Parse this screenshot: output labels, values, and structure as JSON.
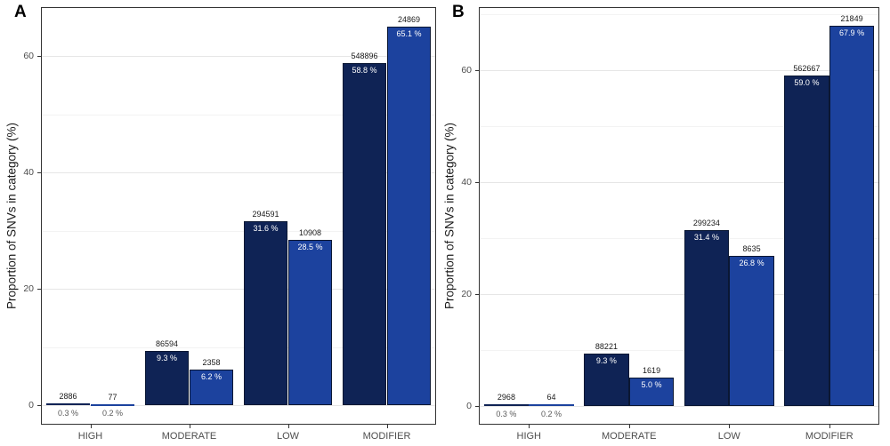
{
  "figure": {
    "background": "#ffffff",
    "panel_border_color": "#333333",
    "grid_major_color": "#e6e6e6",
    "grid_minor_color": "#f3f3f3",
    "axis_text_color": "#4d4d4d",
    "count_label_color": "#1a1a1a",
    "pct_inside_color": "#ffffff",
    "pct_outside_color": "#595959",
    "bar_border_color": "#0a1733",
    "series_colors": {
      "dark_blue": "#0f2355",
      "light_blue": "#1c429e"
    }
  },
  "chart_data": [
    {
      "type": "bar",
      "panel_label": "A",
      "title": "",
      "xlabel": "",
      "ylabel": "Proportion of SNVs in category (%)",
      "categories": [
        "HIGH",
        "MODERATE",
        "LOW",
        "MODIFIER"
      ],
      "y_ticks": [
        0,
        20,
        40,
        60
      ],
      "ylim": [
        -3.3,
        68.4
      ],
      "grid": true,
      "legend": "none",
      "series": [
        {
          "name": "dark_blue",
          "values": [
            0.3,
            9.3,
            31.6,
            58.8
          ],
          "counts": [
            "2886",
            "86594",
            "294591",
            "548896"
          ],
          "pct_labels": [
            "0.3 %",
            "9.3 %",
            "31.6 %",
            "58.8 %"
          ]
        },
        {
          "name": "light_blue",
          "values": [
            0.2,
            6.2,
            28.5,
            65.1
          ],
          "counts": [
            "77",
            "2358",
            "10908",
            "24869"
          ],
          "pct_labels": [
            "0.2 %",
            "6.2 %",
            "28.5 %",
            "65.1 %"
          ]
        }
      ]
    },
    {
      "type": "bar",
      "panel_label": "B",
      "title": "",
      "xlabel": "",
      "ylabel": "Proportion of SNVs in category (%)",
      "categories": [
        "HIGH",
        "MODERATE",
        "LOW",
        "MODIFIER"
      ],
      "y_ticks": [
        0,
        20,
        40,
        60
      ],
      "ylim": [
        -3.4,
        71.3
      ],
      "grid": true,
      "legend": "none",
      "series": [
        {
          "name": "dark_blue",
          "values": [
            0.3,
            9.3,
            31.4,
            59.0
          ],
          "counts": [
            "2968",
            "88221",
            "299234",
            "562667"
          ],
          "pct_labels": [
            "0.3 %",
            "9.3 %",
            "31.4 %",
            "59.0 %"
          ]
        },
        {
          "name": "light_blue",
          "values": [
            0.2,
            5.0,
            26.8,
            67.9
          ],
          "counts": [
            "64",
            "1619",
            "8635",
            "21849"
          ],
          "pct_labels": [
            "0.2 %",
            "5.0 %",
            "26.8 %",
            "67.9 %"
          ]
        }
      ]
    }
  ]
}
